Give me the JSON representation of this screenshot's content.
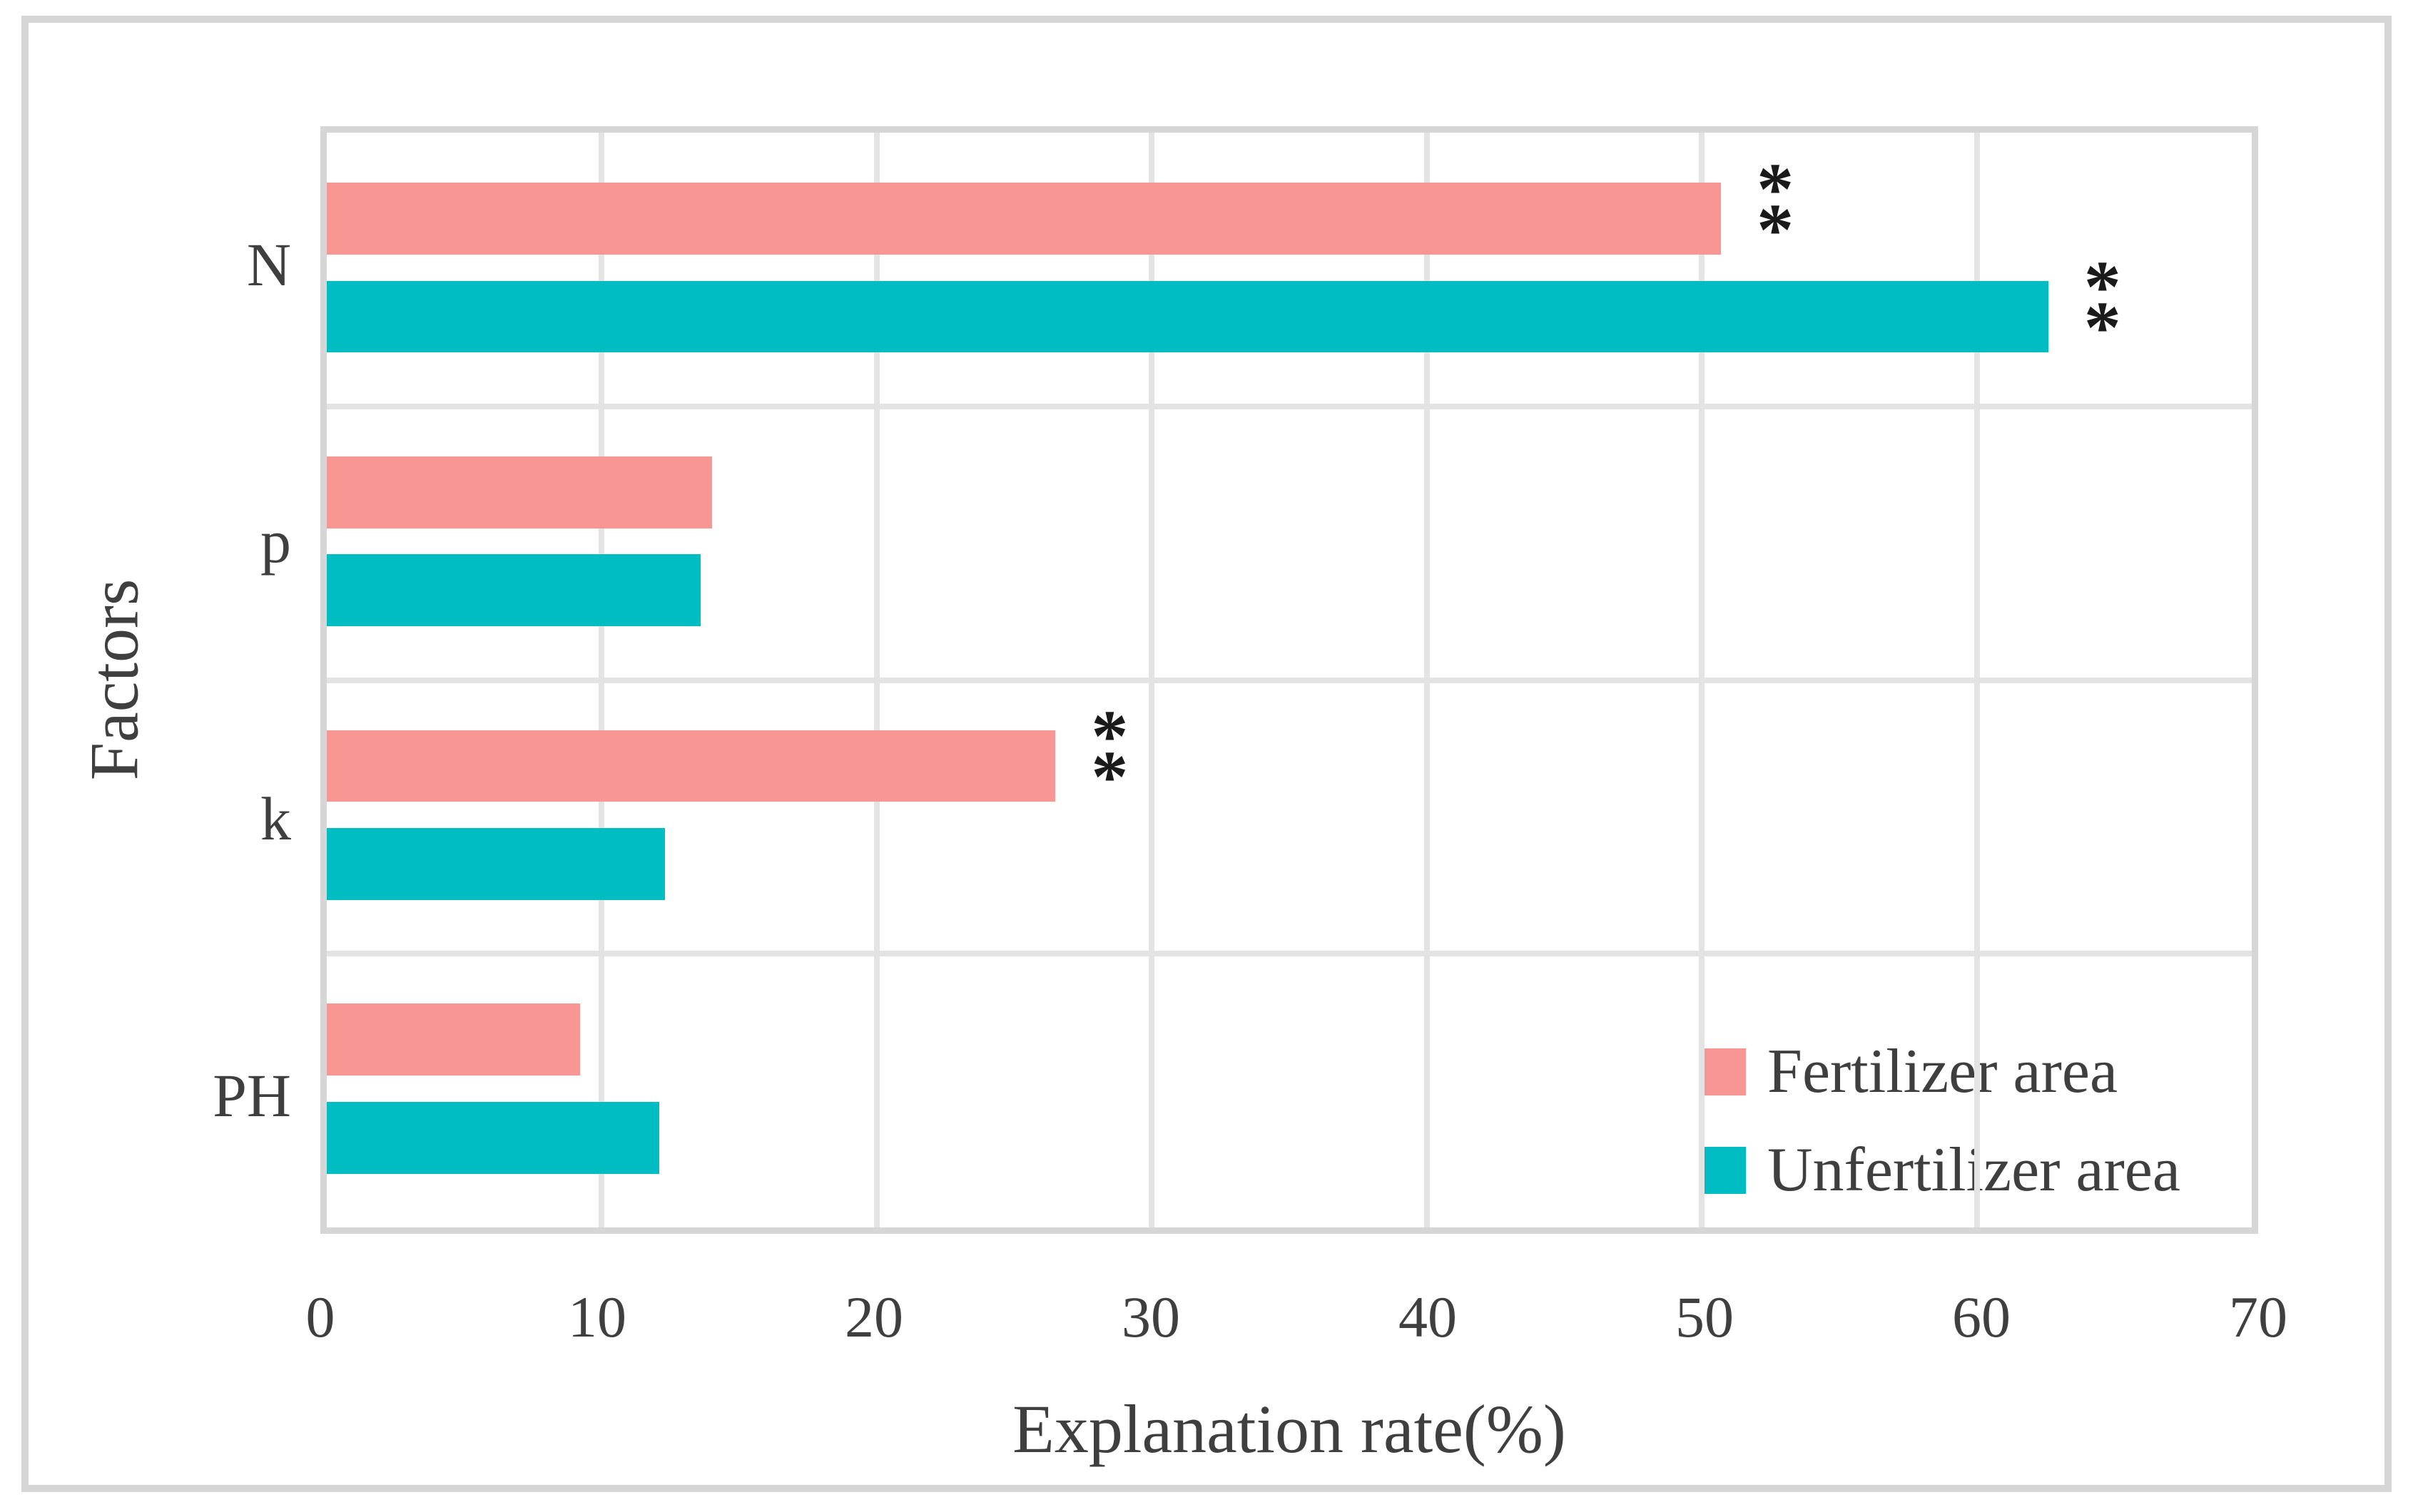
{
  "chart_data": {
    "type": "bar",
    "orientation": "horizontal",
    "title": "",
    "xlabel": "Explanation rate(%)",
    "ylabel": "Factors",
    "categories": [
      "N",
      "p",
      "k",
      "PH"
    ],
    "series": [
      {
        "name": "Fertilizer area",
        "color": "#F89693",
        "values": [
          50.7,
          14.0,
          26.5,
          9.2
        ],
        "significance": [
          "**",
          "",
          "**",
          ""
        ]
      },
      {
        "name": "Unfertilizer area",
        "color": "#00BDC4",
        "values": [
          62.6,
          13.6,
          12.3,
          12.1
        ],
        "significance": [
          "**",
          "",
          "",
          ""
        ]
      }
    ],
    "xlim": [
      0,
      70
    ],
    "xticks": [
      0,
      10,
      20,
      30,
      40,
      50,
      60,
      70
    ],
    "grid": true,
    "legend_position": "inside-lower-right",
    "style": {
      "grid_color": "#E3E3E3",
      "frame_color": "#D6D6D6",
      "text_color": "#3F3F3F",
      "annotation_color": "#1A1A1A"
    }
  }
}
